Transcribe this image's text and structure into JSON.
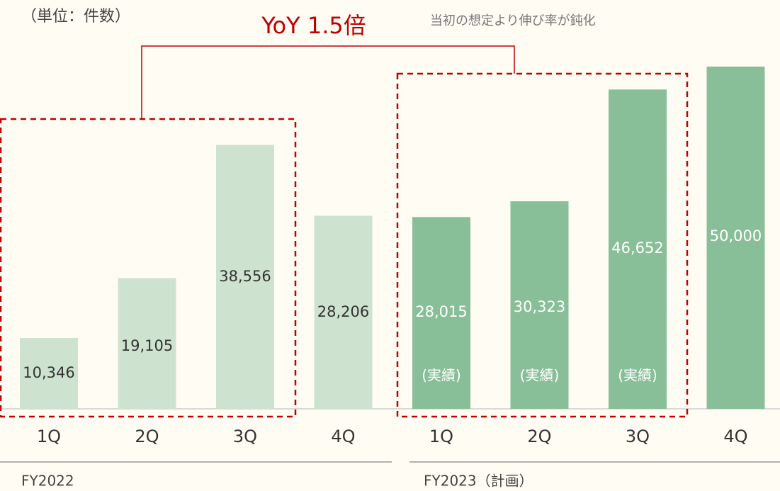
{
  "chart_data": {
    "type": "bar",
    "title": "YoY 1.5倍",
    "unit_label": "（単位：件数）",
    "annotation": "当初の想定より伸び率が鈍化",
    "ylim": [
      0,
      50000
    ],
    "groups": [
      {
        "name": "FY2022",
        "color": "#cde3cf",
        "categories": [
          "1Q",
          "2Q",
          "3Q",
          "4Q"
        ],
        "values": [
          10346,
          19105,
          38556,
          28206
        ],
        "value_labels": [
          "10,346",
          "19,105",
          "38,556",
          "28,206"
        ],
        "notes": [
          null,
          null,
          null,
          null
        ]
      },
      {
        "name": "FY2023（計画）",
        "color": "#88bf98",
        "categories": [
          "1Q",
          "2Q",
          "3Q",
          "4Q"
        ],
        "values": [
          28015,
          30323,
          46652,
          50000
        ],
        "value_labels": [
          "28,015",
          "30,323",
          "46,652",
          "50,000"
        ],
        "notes": [
          "(実績)",
          "(実績)",
          "(実績)",
          null
        ]
      }
    ]
  }
}
